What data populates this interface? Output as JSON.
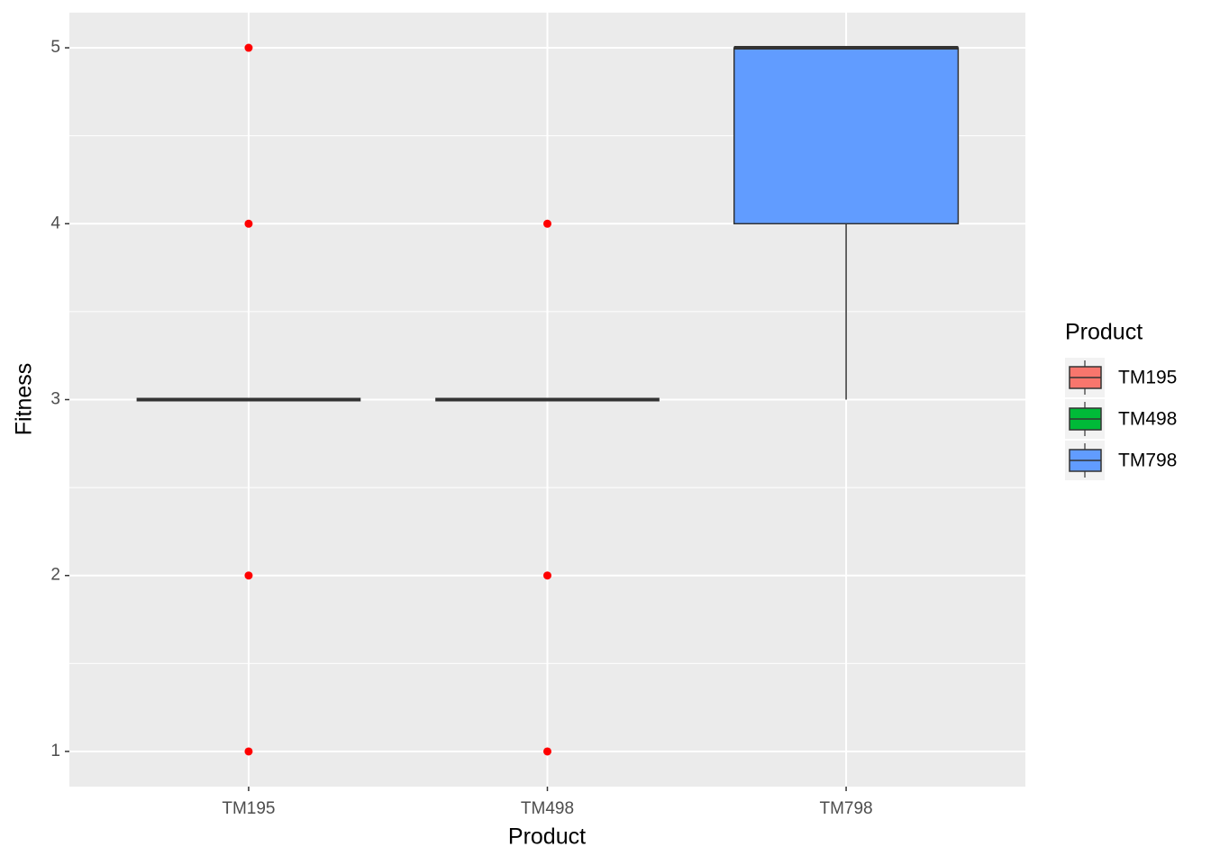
{
  "chart_data": {
    "type": "box",
    "xlabel": "Product",
    "ylabel": "Fitness",
    "legend_title": "Product",
    "categories": [
      "TM195",
      "TM498",
      "TM798"
    ],
    "colors": [
      "#f8766d",
      "#00ba38",
      "#619cff"
    ],
    "boxes": [
      {
        "min": 3,
        "q1": 3,
        "median": 3,
        "q3": 3,
        "max": 3,
        "outliers": [
          1,
          2,
          4,
          5
        ]
      },
      {
        "min": 3,
        "q1": 3,
        "median": 3,
        "q3": 3,
        "max": 3,
        "outliers": [
          1,
          2,
          4
        ]
      },
      {
        "min": 3,
        "q1": 4,
        "median": 5,
        "q3": 5,
        "max": 5,
        "outliers": []
      }
    ],
    "outlier_color": "#ff0000",
    "ylim": [
      0.8,
      5.2
    ],
    "yticks": [
      1,
      2,
      3,
      4,
      5
    ],
    "grid": true,
    "legend": "right"
  }
}
